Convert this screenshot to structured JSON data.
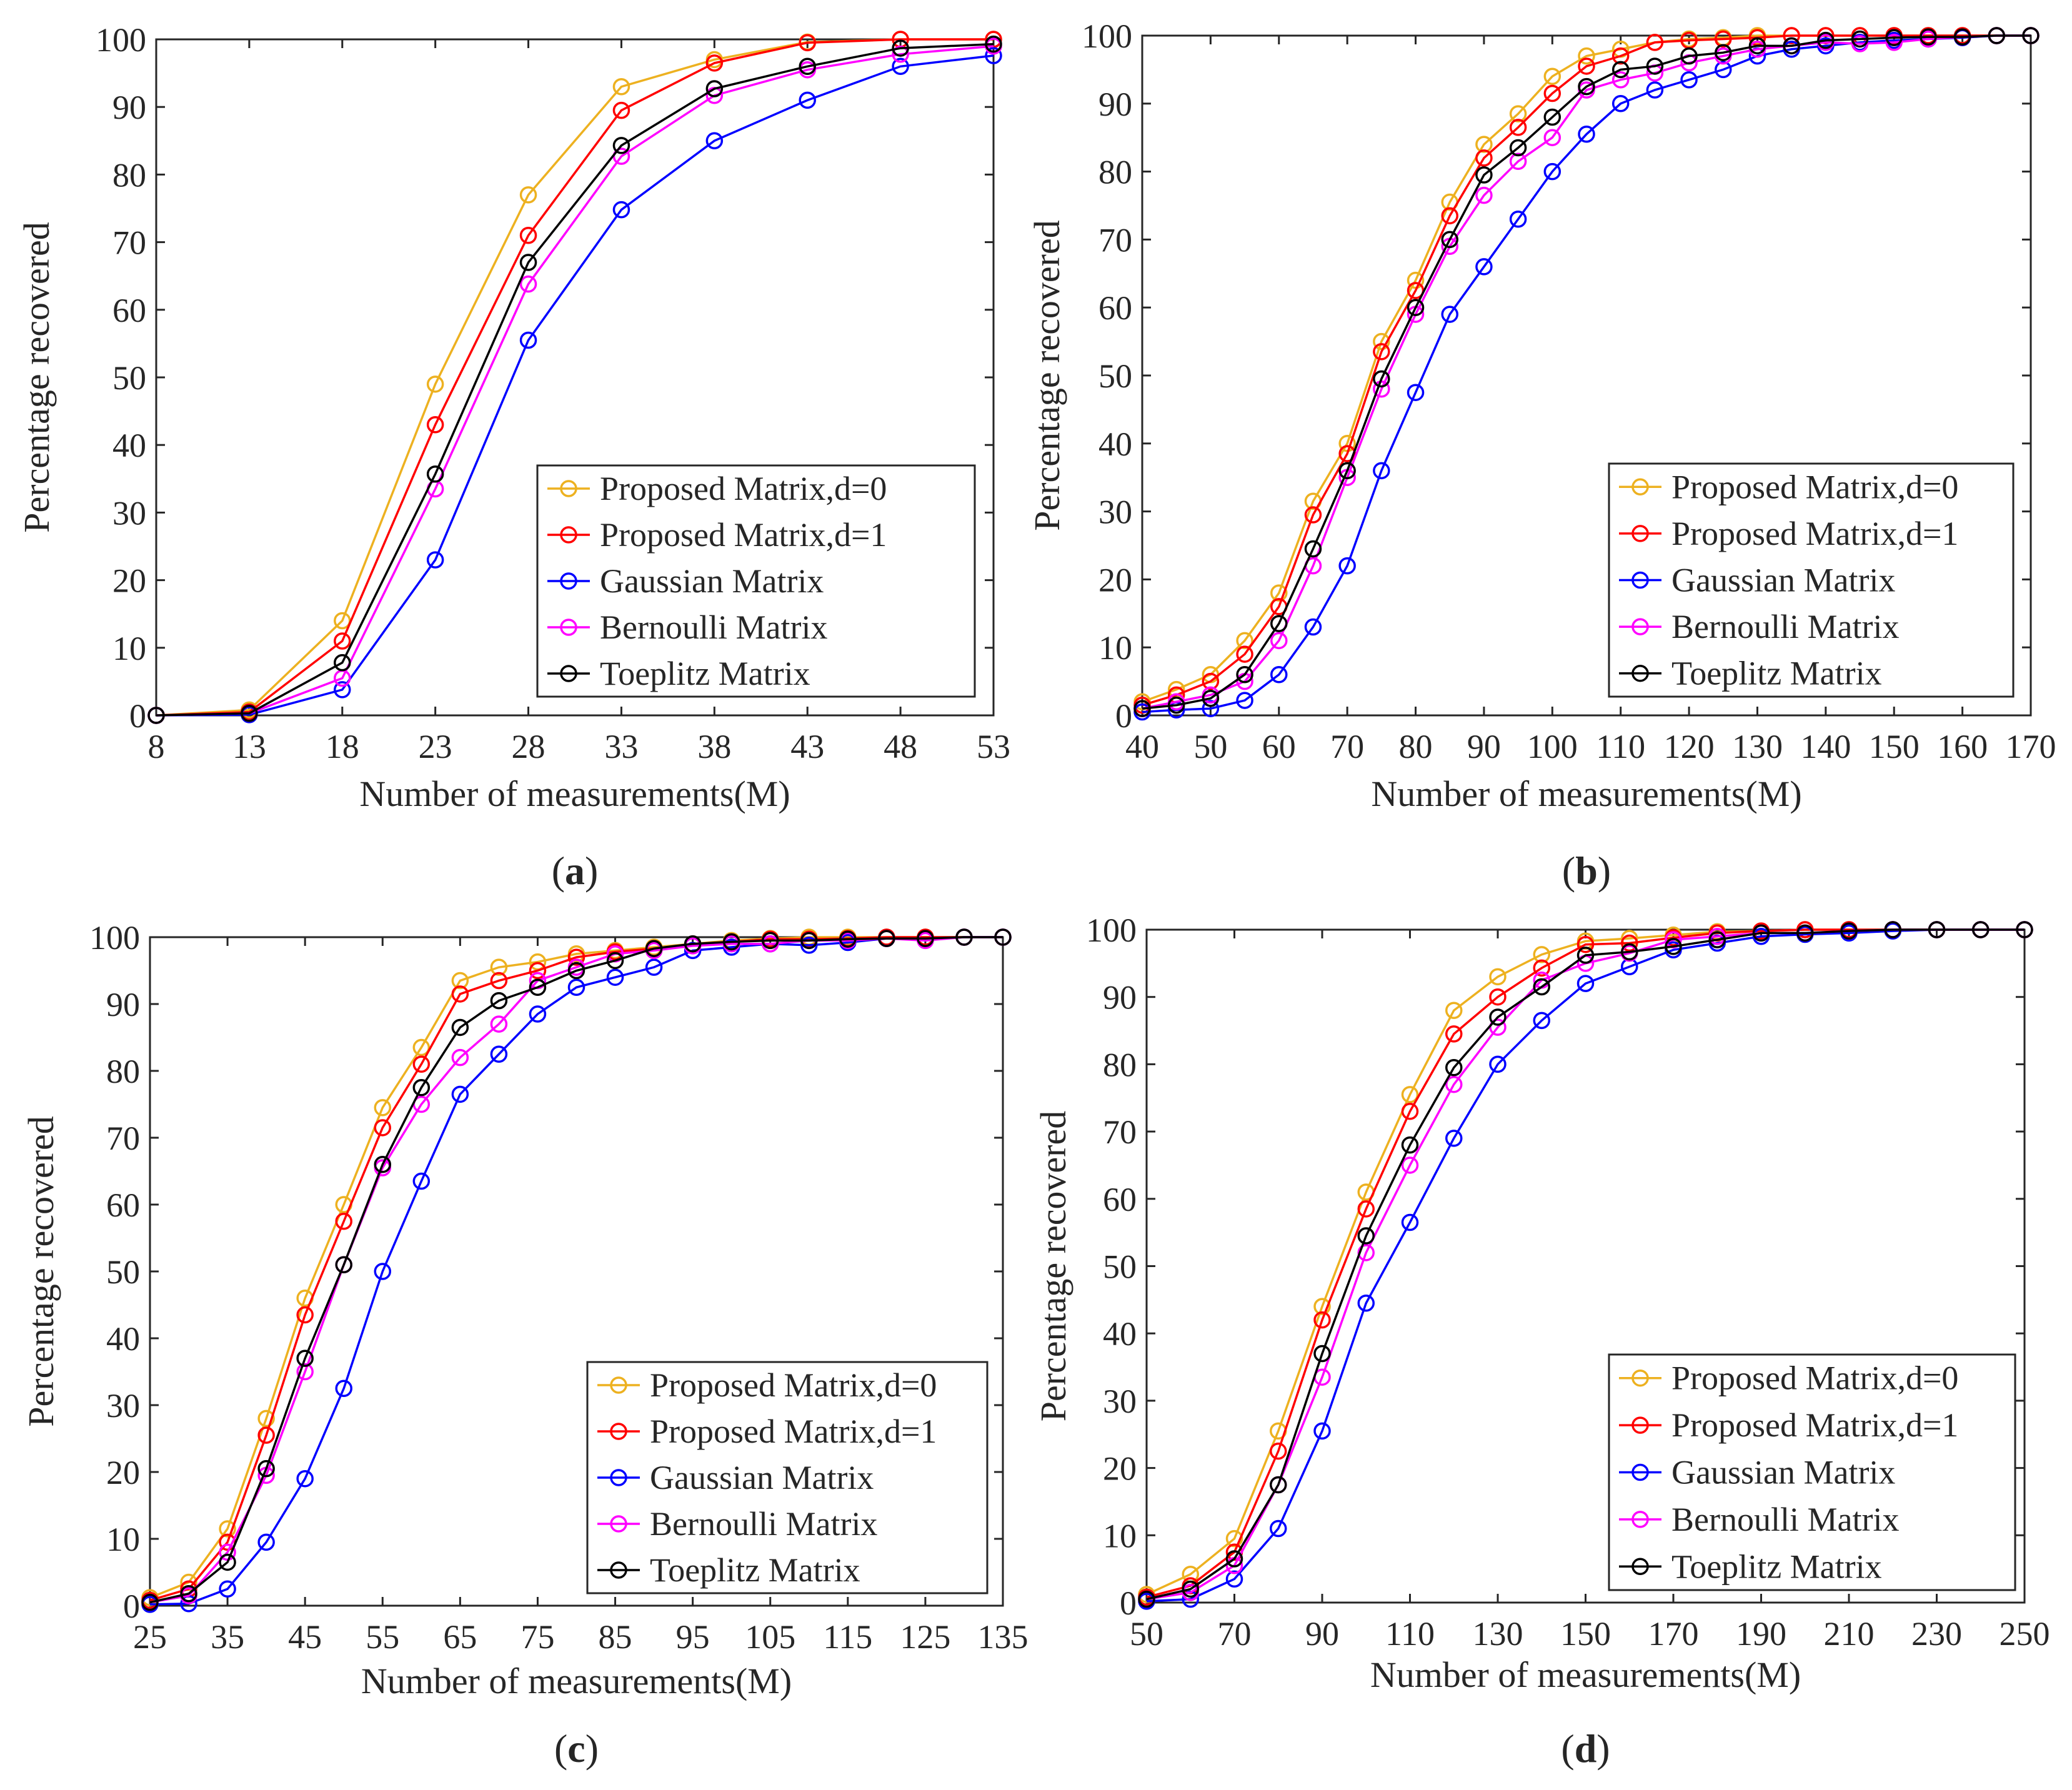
{
  "figure": {
    "legend_entries": [
      "Proposed Matrix,d=0",
      "Proposed Matrix,d=1",
      "Gaussian Matrix",
      "Bernoulli Matrix",
      "Toeplitz Matrix"
    ]
  },
  "chart_data": [
    {
      "type": "line",
      "panel_label": "a",
      "xlabel": "Number of measurements(M)",
      "ylabel": "Percentage recovered",
      "xlim": [
        8,
        53
      ],
      "ylim": [
        0,
        100
      ],
      "xticks": [
        8,
        13,
        18,
        23,
        28,
        33,
        38,
        43,
        48,
        53
      ],
      "yticks": [
        0,
        10,
        20,
        30,
        40,
        50,
        60,
        70,
        80,
        90,
        100
      ],
      "grid": false,
      "legend_position": "lower-right",
      "x": [
        8,
        13,
        18,
        23,
        28,
        33,
        38,
        43,
        48,
        53
      ],
      "series": [
        {
          "name": "Proposed Matrix,d=0",
          "color": "#EDB120",
          "values": [
            0,
            0.8,
            14,
            49,
            77,
            93,
            97,
            99.6,
            100,
            100
          ]
        },
        {
          "name": "Proposed Matrix,d=1",
          "color": "#FF0000",
          "values": [
            0,
            0.5,
            11,
            43,
            71,
            89.5,
            96.5,
            99.5,
            100,
            100
          ]
        },
        {
          "name": "Gaussian Matrix",
          "color": "#0000FF",
          "values": [
            0,
            0.1,
            3.8,
            23,
            55.5,
            74.8,
            85,
            91,
            96,
            97.6
          ]
        },
        {
          "name": "Bernoulli Matrix",
          "color": "#FF00FF",
          "values": [
            0,
            0.3,
            5.5,
            33.5,
            63.8,
            82.7,
            91.7,
            95.5,
            97.8,
            99
          ]
        },
        {
          "name": "Toeplitz Matrix",
          "color": "#000000",
          "values": [
            0,
            0.3,
            7.8,
            35.7,
            67,
            84.3,
            92.7,
            96,
            98.7,
            99.3
          ]
        }
      ]
    },
    {
      "type": "line",
      "panel_label": "b",
      "xlabel": "Number of measurements(M)",
      "ylabel": "Percentage recovered",
      "xlim": [
        40,
        170
      ],
      "ylim": [
        0,
        100
      ],
      "xticks": [
        40,
        50,
        60,
        70,
        80,
        90,
        100,
        110,
        120,
        130,
        140,
        150,
        160,
        170
      ],
      "yticks": [
        0,
        10,
        20,
        30,
        40,
        50,
        60,
        70,
        80,
        90,
        100
      ],
      "grid": false,
      "legend_position": "lower-right",
      "x": [
        40,
        45,
        50,
        55,
        60,
        65,
        70,
        75,
        80,
        85,
        90,
        95,
        100,
        105,
        110,
        115,
        120,
        125,
        130,
        135,
        140,
        145,
        150,
        155,
        160,
        165,
        170
      ],
      "series": [
        {
          "name": "Proposed Matrix,d=0",
          "color": "#EDB120",
          "values": [
            2,
            3.8,
            6,
            11,
            18,
            31.5,
            40,
            55,
            64,
            75.5,
            84,
            88.5,
            94,
            97,
            98,
            99,
            99.5,
            99.7,
            100,
            100,
            100,
            100,
            100,
            100,
            100,
            100,
            100
          ]
        },
        {
          "name": "Proposed Matrix,d=1",
          "color": "#FF0000",
          "values": [
            1.5,
            3,
            5,
            9,
            16,
            29.5,
            38.5,
            53.5,
            62.5,
            73.5,
            82,
            86.5,
            91.5,
            95.5,
            97,
            99,
            99.3,
            99.5,
            99.7,
            100,
            100,
            100,
            100,
            100,
            100,
            100,
            100
          ]
        },
        {
          "name": "Gaussian Matrix",
          "color": "#0000FF",
          "values": [
            0.5,
            0.8,
            1,
            2.2,
            6,
            13,
            22,
            36,
            47.5,
            59,
            66,
            73,
            80,
            85.5,
            90,
            92,
            93.5,
            95,
            97,
            98,
            98.5,
            99,
            99.3,
            99.5,
            99.7,
            100,
            100
          ]
        },
        {
          "name": "Bernoulli Matrix",
          "color": "#FF00FF",
          "values": [
            1,
            2,
            3,
            5,
            11,
            22,
            35,
            48,
            59,
            69,
            76.5,
            81.5,
            85,
            92,
            93.5,
            94.5,
            96,
            97,
            98,
            98.5,
            99,
            98.8,
            99,
            99.5,
            99.8,
            100,
            100
          ]
        },
        {
          "name": "Toeplitz Matrix",
          "color": "#000000",
          "values": [
            1,
            1.5,
            2.5,
            6,
            13.5,
            24.5,
            36,
            49.5,
            60,
            70,
            79.5,
            83.5,
            88,
            92.5,
            95,
            95.5,
            97,
            97.5,
            98.5,
            98.5,
            99.3,
            99.5,
            99.7,
            99.8,
            99.8,
            100,
            100
          ]
        }
      ]
    },
    {
      "type": "line",
      "panel_label": "c",
      "xlabel": "Number of measurements(M)",
      "ylabel": "Percentage recovered",
      "xlim": [
        25,
        135
      ],
      "ylim": [
        0,
        100
      ],
      "xticks": [
        25,
        35,
        45,
        55,
        65,
        75,
        85,
        95,
        105,
        115,
        125,
        135
      ],
      "yticks": [
        0,
        10,
        20,
        30,
        40,
        50,
        60,
        70,
        80,
        90,
        100
      ],
      "grid": false,
      "legend_position": "lower-right",
      "x": [
        25,
        30,
        35,
        40,
        45,
        50,
        55,
        60,
        65,
        70,
        75,
        80,
        85,
        90,
        95,
        100,
        105,
        110,
        115,
        120,
        125,
        130,
        135
      ],
      "series": [
        {
          "name": "Proposed Matrix,d=0",
          "color": "#EDB120",
          "values": [
            1.2,
            3.5,
            11.5,
            28,
            46,
            60,
            74.5,
            83.5,
            93.5,
            95.5,
            96.3,
            97.5,
            98,
            98.5,
            99,
            99.5,
            99.8,
            100,
            100,
            100,
            100,
            100,
            100
          ]
        },
        {
          "name": "Proposed Matrix,d=1",
          "color": "#FF0000",
          "values": [
            0.8,
            2.5,
            9.5,
            25.5,
            43.5,
            57.5,
            71.5,
            81,
            91.5,
            93.5,
            95,
            97,
            97.8,
            98.3,
            98.8,
            99.3,
            99.7,
            99.7,
            99.8,
            100,
            100,
            100,
            100
          ]
        },
        {
          "name": "Gaussian Matrix",
          "color": "#0000FF",
          "values": [
            0.2,
            0.3,
            2.5,
            9.5,
            19,
            32.5,
            50,
            63.5,
            76.5,
            82.5,
            88.5,
            92.5,
            94,
            95.5,
            98,
            98.5,
            99,
            98.8,
            99.2,
            99.8,
            99.7,
            100,
            100
          ]
        },
        {
          "name": "Bernoulli Matrix",
          "color": "#FF00FF",
          "values": [
            0.5,
            1.5,
            8,
            19.5,
            35,
            51,
            65.5,
            75,
            82,
            87,
            93.5,
            95.5,
            97.5,
            98,
            98.7,
            99,
            99,
            99.5,
            99.5,
            99.8,
            99.5,
            100,
            100
          ]
        },
        {
          "name": "Toeplitz Matrix",
          "color": "#000000",
          "values": [
            0.5,
            1.8,
            6.5,
            20.5,
            37,
            51,
            66,
            77.5,
            86.5,
            90.5,
            92.5,
            95,
            96.5,
            98.3,
            99,
            99.3,
            99.5,
            99.5,
            99.7,
            99.8,
            99.8,
            100,
            100
          ]
        }
      ]
    },
    {
      "type": "line",
      "panel_label": "d",
      "xlabel": "Number of measurements(M)",
      "ylabel": "Percentage recovered",
      "xlim": [
        50,
        250
      ],
      "ylim": [
        0,
        100
      ],
      "xticks": [
        50,
        70,
        90,
        110,
        130,
        150,
        170,
        190,
        210,
        230,
        250
      ],
      "yticks": [
        0,
        10,
        20,
        30,
        40,
        50,
        60,
        70,
        80,
        90,
        100
      ],
      "grid": false,
      "legend_position": "lower-right",
      "x": [
        50,
        60,
        70,
        80,
        90,
        100,
        110,
        120,
        130,
        140,
        150,
        160,
        170,
        180,
        190,
        200,
        210,
        220,
        230,
        240,
        250
      ],
      "series": [
        {
          "name": "Proposed Matrix,d=0",
          "color": "#EDB120",
          "values": [
            1.2,
            4.2,
            9.5,
            25.5,
            44,
            61,
            75.5,
            88,
            93,
            96.3,
            98.3,
            98.7,
            99.2,
            99.7,
            99.8,
            100,
            100,
            100,
            100,
            100,
            100
          ]
        },
        {
          "name": "Proposed Matrix,d=1",
          "color": "#FF0000",
          "values": [
            0.8,
            2.5,
            7.5,
            22.5,
            42,
            58.5,
            73,
            84.5,
            90,
            94.3,
            97.8,
            98,
            98.8,
            99.5,
            99.8,
            100,
            100,
            100,
            100,
            100,
            100
          ]
        },
        {
          "name": "Gaussian Matrix",
          "color": "#0000FF",
          "values": [
            0.2,
            0.5,
            3.5,
            11,
            25.5,
            44.5,
            56.5,
            69,
            80,
            86.5,
            92,
            94.5,
            97,
            98,
            99,
            99.3,
            99.5,
            99.8,
            100,
            100,
            100
          ]
        },
        {
          "name": "Bernoulli Matrix",
          "color": "#FF00FF",
          "values": [
            0.5,
            1.5,
            5.5,
            17.5,
            33.5,
            52,
            65,
            77,
            85.5,
            92.5,
            95,
            96.5,
            98.5,
            99,
            99.5,
            99.5,
            99.8,
            100,
            100,
            100,
            100
          ]
        },
        {
          "name": "Toeplitz Matrix",
          "color": "#000000",
          "values": [
            0.5,
            2,
            6.5,
            17.5,
            37,
            54.5,
            68,
            79.5,
            87,
            91.5,
            96.2,
            96.7,
            97.5,
            98.5,
            99.5,
            99.5,
            99.8,
            100,
            100,
            100,
            100
          ]
        }
      ]
    }
  ]
}
